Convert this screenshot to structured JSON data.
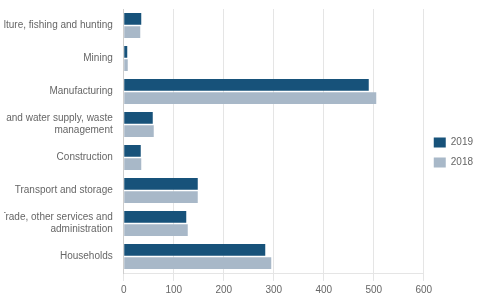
{
  "chart_data": {
    "type": "bar",
    "orientation": "horizontal",
    "categories": [
      "Agriculture, fishing and hunting",
      "Mining",
      "Manufacturing",
      "Energy and water supply, waste\nmanagement",
      "Construction",
      "Transport and storage",
      "Trade, other services and\nadministration",
      "Households"
    ],
    "series": [
      {
        "name": "2019",
        "color": "#17527a",
        "values": [
          35,
          7,
          490,
          58,
          34,
          148,
          125,
          283
        ]
      },
      {
        "name": "2018",
        "color": "#a8b8c8",
        "values": [
          33,
          8,
          505,
          60,
          35,
          148,
          128,
          295
        ]
      }
    ],
    "xlim": [
      0,
      600
    ],
    "xticks": [
      0,
      100,
      200,
      300,
      400,
      500,
      600
    ],
    "grid": true,
    "legend": "right"
  }
}
